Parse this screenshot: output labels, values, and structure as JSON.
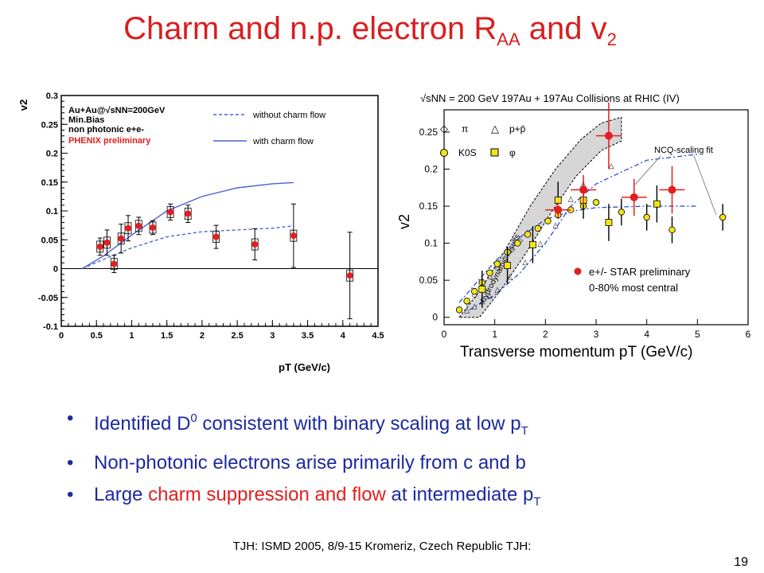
{
  "slide": {
    "title": {
      "main": "Charm and n.p. electron R",
      "sub1": "AA",
      "mid": " and v",
      "sub2": "2"
    },
    "bullets": [
      {
        "parts": [
          {
            "t": "Identified D"
          },
          {
            "t": "0",
            "sup": true
          },
          {
            "t": " consistent with binary scaling at low p"
          },
          {
            "t": "T",
            "sub": true
          }
        ]
      },
      {
        "parts": [
          {
            "t": "Non-photonic electrons arise primarily from c and b"
          }
        ]
      },
      {
        "parts": [
          {
            "t": "Large "
          },
          {
            "t": "charm suppression and flow",
            "red": true
          },
          {
            "t": " at intermediate p"
          },
          {
            "t": "T",
            "sub": true
          }
        ]
      }
    ],
    "bullet_symbol": "•",
    "footer": "TJH: ISMD 2005, 8/9-15 Kromeriz, Czech Republic TJH:",
    "page_number": "19",
    "colors": {
      "title": "#d81e1e",
      "bullet_text": "#1c2aa0",
      "highlight": "#e31e1e"
    }
  },
  "chart_data": [
    {
      "type": "scatter",
      "ylabel": "v2",
      "xlabel": "pT (GeV/c)",
      "xlim": [
        0,
        4.5
      ],
      "ylim": [
        -0.1,
        0.3
      ],
      "xticks": [
        0,
        0.5,
        1,
        1.5,
        2,
        2.5,
        3,
        3.5,
        4,
        4.5
      ],
      "yticks": [
        -0.1,
        -0.05,
        0,
        0.05,
        0.1,
        0.15,
        0.2,
        0.25,
        0.3
      ],
      "annotations": [
        "Au+Au@√sNN=200GeV",
        "Min.Bias",
        "non photonic e+e-",
        "PHENIX preliminary"
      ],
      "legend": {
        "placement": "top-right",
        "entries": [
          "without charm flow",
          "with charm flow"
        ]
      },
      "series": [
        {
          "name": "without charm flow",
          "style": "dashed",
          "color": "#4d60d8",
          "x": [
            0.3,
            0.6,
            1.0,
            1.5,
            2.0,
            2.5,
            3.0,
            3.3
          ],
          "y": [
            0.0,
            0.016,
            0.036,
            0.055,
            0.064,
            0.067,
            0.07,
            0.074
          ]
        },
        {
          "name": "with charm flow",
          "style": "solid",
          "color": "#4d60d8",
          "x": [
            0.3,
            0.6,
            1.0,
            1.5,
            2.0,
            2.5,
            3.0,
            3.3
          ],
          "y": [
            0.0,
            0.022,
            0.058,
            0.1,
            0.125,
            0.14,
            0.147,
            0.149
          ]
        },
        {
          "kind": "points",
          "color": "#e31e1e",
          "x": [
            0.55,
            0.65,
            0.75,
            0.85,
            0.95,
            1.1,
            1.3,
            1.55,
            1.8,
            2.2,
            2.75,
            3.3,
            4.1
          ],
          "y": [
            0.038,
            0.045,
            0.008,
            0.052,
            0.07,
            0.074,
            0.071,
            0.098,
            0.095,
            0.055,
            0.042,
            0.057,
            -0.012
          ],
          "err": [
            0.015,
            0.022,
            0.015,
            0.025,
            0.022,
            0.015,
            0.012,
            0.014,
            0.015,
            0.02,
            0.027,
            0.055,
            0.075
          ]
        }
      ]
    },
    {
      "type": "scatter",
      "header": "√sNN = 200 GeV 197Au + 197Au Collisions at RHIC (IV)",
      "ylabel": "v2",
      "xlabel": "Transverse momentum pT (GeV/c)",
      "xlim": [
        0,
        6
      ],
      "ylim": [
        -0.01,
        0.28
      ],
      "xticks": [
        0,
        1,
        2,
        3,
        4,
        5,
        6
      ],
      "yticks": [
        0,
        0.05,
        0.1,
        0.15,
        0.2,
        0.25
      ],
      "annotations": [
        "hydrodynamic results",
        "NCQ-scaling fit",
        "e+/- STAR preliminary",
        "0-80% most central"
      ],
      "legend": {
        "placement": "top-left",
        "entries": [
          "π",
          "p+p̄",
          "K0S",
          "φ"
        ]
      },
      "series": [
        {
          "name": "π",
          "x": [
            0.3,
            0.45,
            0.6,
            0.75,
            0.9,
            1.05,
            1.2,
            1.35,
            1.5,
            1.65
          ],
          "y": [
            0.01,
            0.02,
            0.03,
            0.042,
            0.055,
            0.067,
            0.08,
            0.092,
            0.104,
            0.115
          ]
        },
        {
          "name": "p+p̄",
          "x": [
            0.45,
            0.6,
            0.75,
            0.9,
            1.05,
            1.3,
            1.6,
            1.9,
            2.2,
            2.5,
            2.75,
            3.3
          ],
          "y": [
            0.01,
            0.015,
            0.022,
            0.03,
            0.038,
            0.055,
            0.075,
            0.1,
            0.125,
            0.16,
            0.18,
            0.205
          ]
        },
        {
          "name": "K0S",
          "x": [
            0.3,
            0.45,
            0.6,
            0.75,
            0.9,
            1.05,
            1.25,
            1.45,
            1.65,
            1.85,
            2.05,
            2.25,
            2.5,
            2.75,
            3.0,
            3.5,
            4.0,
            4.5,
            5.5
          ],
          "y": [
            0.01,
            0.022,
            0.035,
            0.047,
            0.06,
            0.072,
            0.088,
            0.1,
            0.112,
            0.12,
            0.13,
            0.138,
            0.145,
            0.15,
            0.155,
            0.142,
            0.135,
            0.118,
            0.135
          ]
        },
        {
          "name": "φ",
          "x": [
            0.75,
            1.25,
            1.75,
            2.25,
            2.75,
            3.25,
            4.2
          ],
          "y": [
            0.038,
            0.07,
            0.098,
            0.158,
            0.158,
            0.128,
            0.153
          ]
        },
        {
          "name": "e+/- STAR preliminary",
          "color": "#e31e1e",
          "x": [
            2.25,
            2.75,
            3.25,
            3.75,
            4.5
          ],
          "y": [
            0.145,
            0.172,
            0.245,
            0.162,
            0.172
          ],
          "err": [
            0.01,
            0.02,
            0.045,
            0.025,
            0.032
          ]
        },
        {
          "name": "NCQ-scaling fit (mesons)",
          "style": "dashdot",
          "color": "#1f3fd0",
          "x": [
            0.3,
            1.0,
            1.5,
            2.0,
            2.5,
            3.0,
            4.0,
            5.0
          ],
          "y": [
            0.02,
            0.075,
            0.108,
            0.132,
            0.143,
            0.148,
            0.15,
            0.15
          ]
        },
        {
          "name": "NCQ-scaling fit (baryons)",
          "style": "dashdot",
          "color": "#1f3fd0",
          "x": [
            0.5,
            1.0,
            1.5,
            2.0,
            2.5,
            3.0,
            4.0,
            5.0
          ],
          "y": [
            0.01,
            0.03,
            0.06,
            0.1,
            0.15,
            0.18,
            0.212,
            0.22
          ]
        }
      ]
    }
  ]
}
